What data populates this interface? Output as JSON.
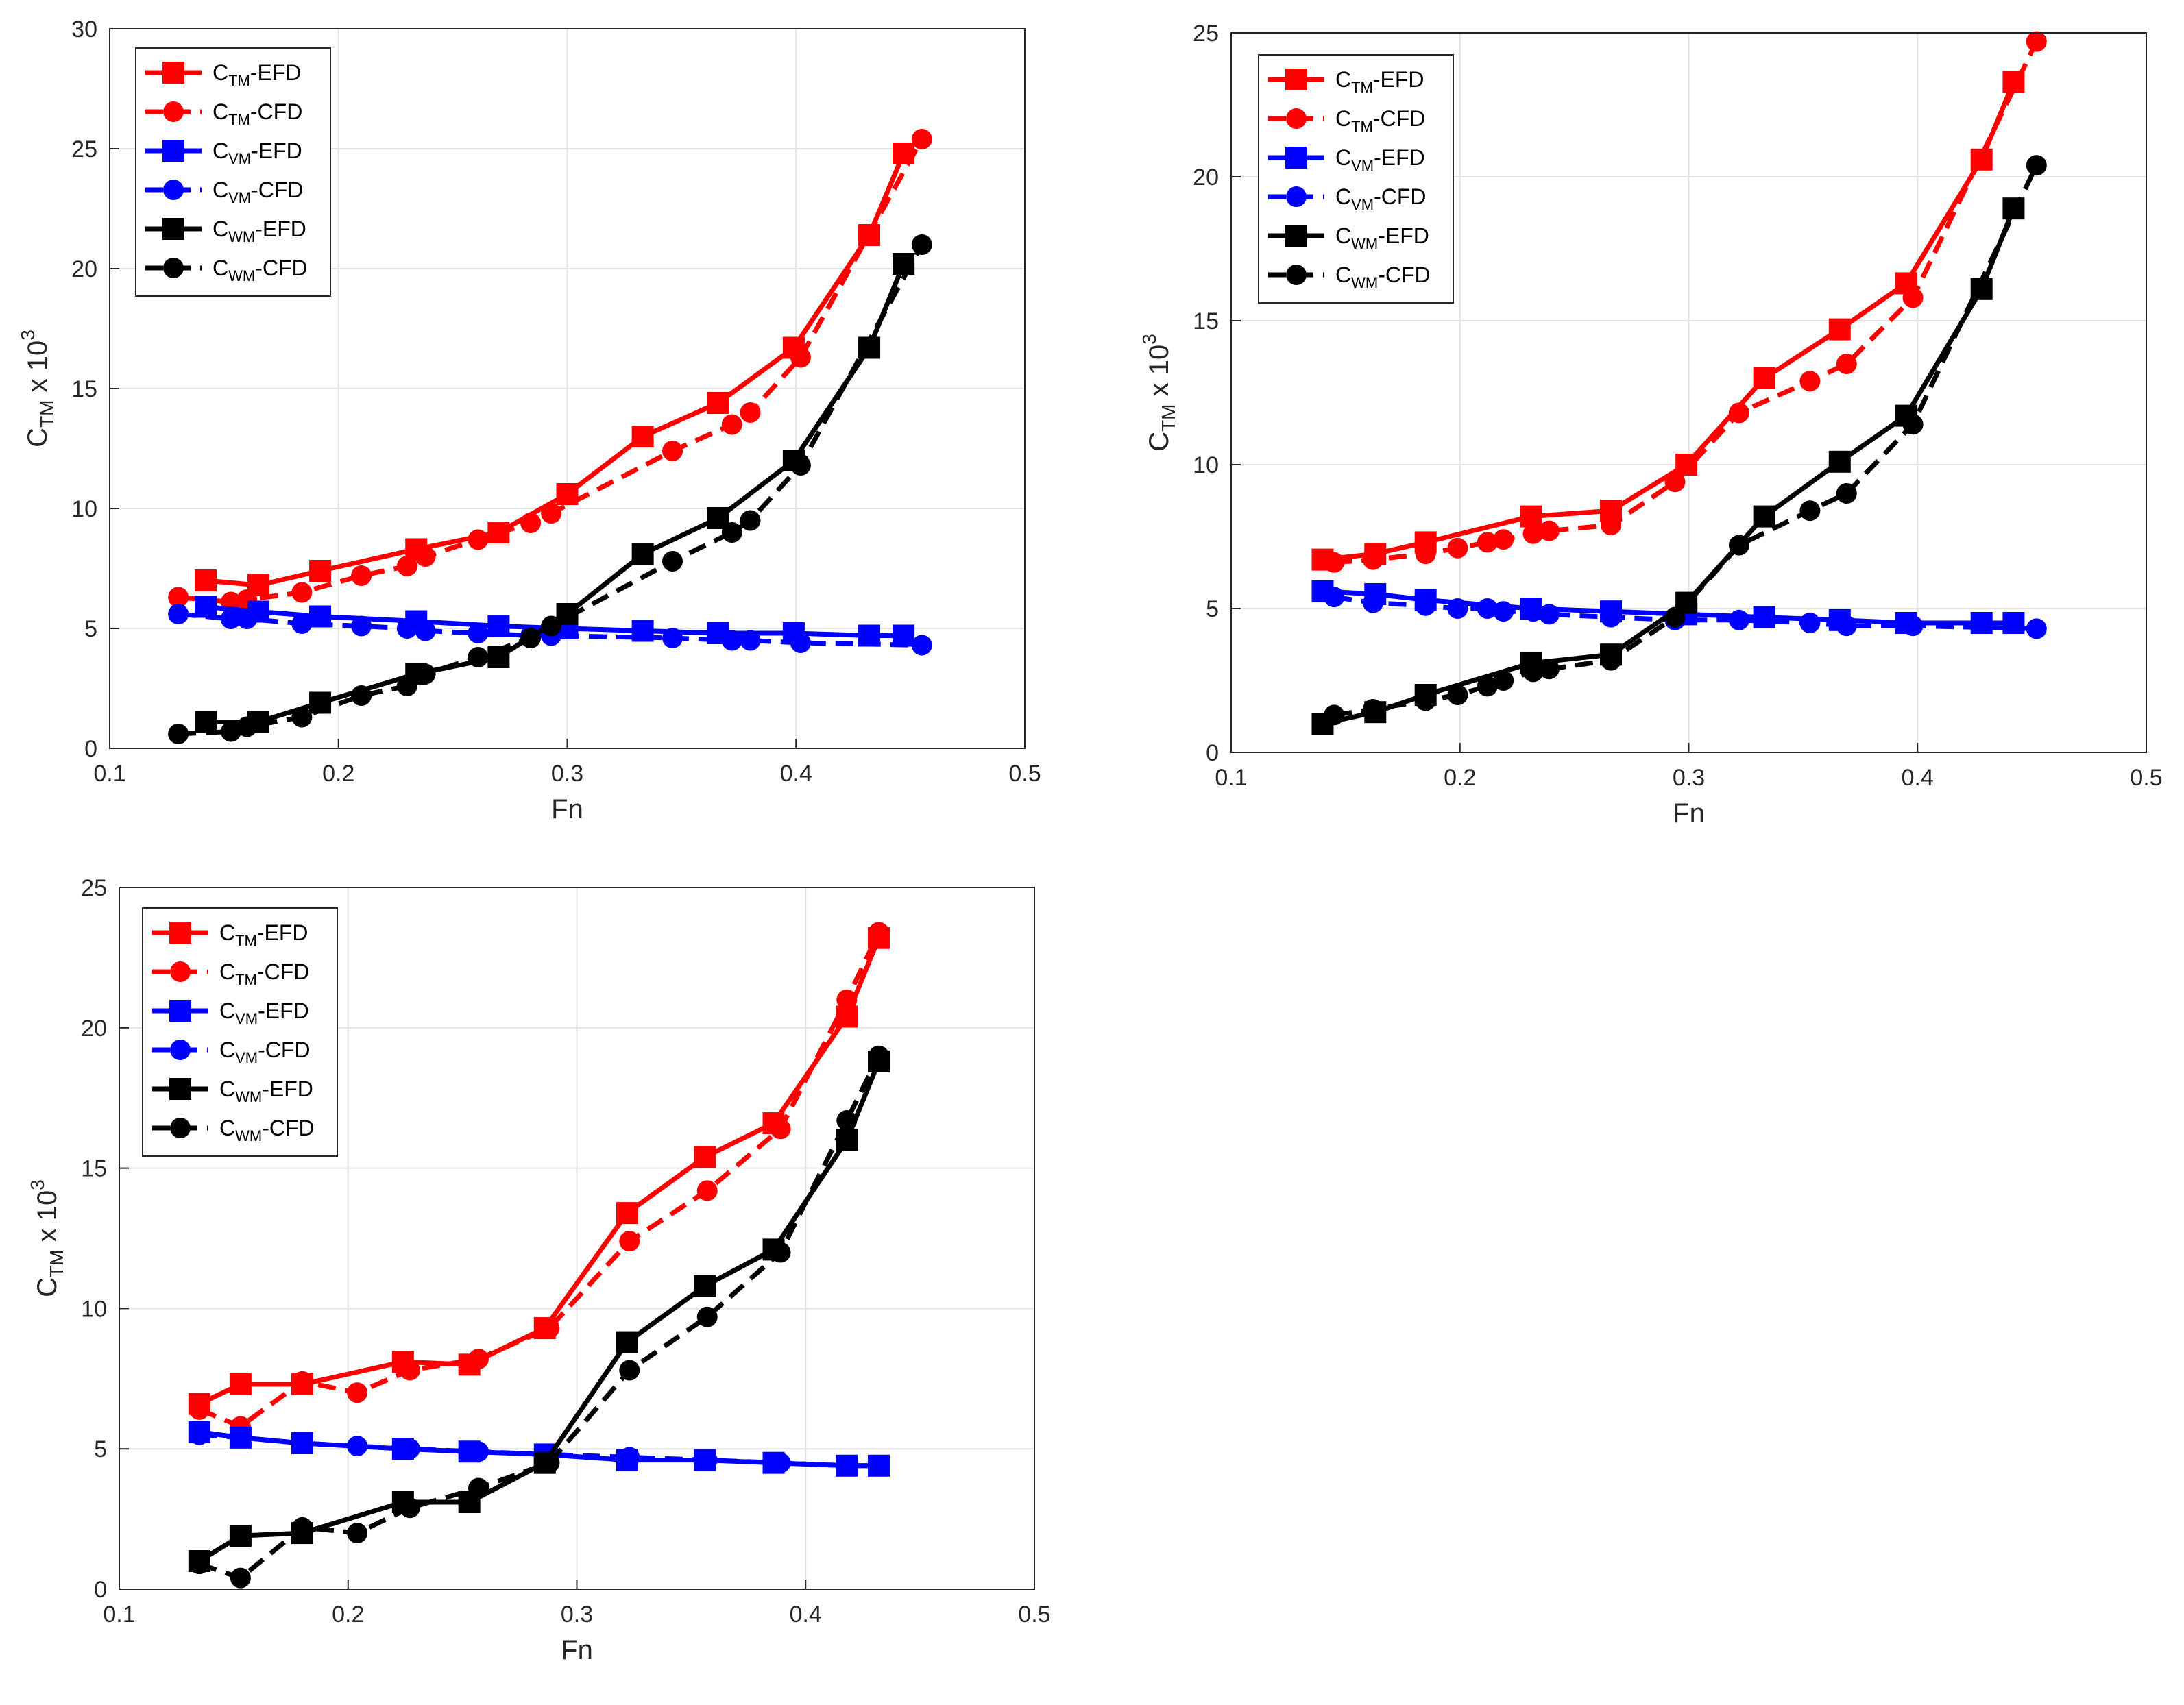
{
  "legend_labels": [
    {
      "main": "C",
      "sub": "TM",
      "suffix": "-EFD"
    },
    {
      "main": "C",
      "sub": "TM",
      "suffix": "-CFD"
    },
    {
      "main": "C",
      "sub": "VM",
      "suffix": "-EFD"
    },
    {
      "main": "C",
      "sub": "VM",
      "suffix": "-CFD"
    },
    {
      "main": "C",
      "sub": "WM",
      "suffix": "-EFD"
    },
    {
      "main": "C",
      "sub": "WM",
      "suffix": "-CFD"
    }
  ],
  "colors": {
    "red": "#ff0000",
    "blue": "#0000ff",
    "black": "#000000",
    "grid": "#e3e3e3",
    "axis": "#262626"
  },
  "chart_data": [
    {
      "type": "line",
      "xlabel": "Fn",
      "ylabel": {
        "main": "C",
        "sub": "TM",
        "rest": " x 10",
        "sup": "3"
      },
      "xlim": [
        0.1,
        0.5
      ],
      "ylim": [
        0,
        30
      ],
      "xticks": [
        "0.1",
        "0.2",
        "0.3",
        "0.4",
        "0.5"
      ],
      "yticks": [
        "0",
        "5",
        "10",
        "15",
        "20",
        "25",
        "30"
      ],
      "grid": true,
      "legend_position": "top-left",
      "series": [
        {
          "name": "CTM-EFD",
          "color": "red",
          "marker": "square",
          "dash": false,
          "x": [
            0.142,
            0.165,
            0.192,
            0.234,
            0.27,
            0.3,
            0.333,
            0.366,
            0.399,
            0.432,
            0.447
          ],
          "y": [
            7.0,
            6.8,
            7.4,
            8.3,
            9.0,
            10.6,
            13.0,
            14.4,
            16.7,
            21.4,
            24.8
          ]
        },
        {
          "name": "CTM-CFD",
          "color": "red",
          "marker": "circle",
          "dash": true,
          "x": [
            0.13,
            0.153,
            0.16,
            0.184,
            0.21,
            0.23,
            0.238,
            0.261,
            0.284,
            0.293,
            0.346,
            0.372,
            0.38,
            0.402,
            0.455
          ],
          "y": [
            6.3,
            6.1,
            6.2,
            6.5,
            7.2,
            7.6,
            8.0,
            8.7,
            9.4,
            9.8,
            12.4,
            13.5,
            14.0,
            16.3,
            25.4
          ]
        },
        {
          "name": "CVM-EFD",
          "color": "blue",
          "marker": "square",
          "dash": false,
          "x": [
            0.142,
            0.165,
            0.192,
            0.234,
            0.27,
            0.3,
            0.333,
            0.366,
            0.399,
            0.432,
            0.447
          ],
          "y": [
            5.9,
            5.7,
            5.5,
            5.3,
            5.1,
            5.0,
            4.9,
            4.8,
            4.8,
            4.7,
            4.7
          ]
        },
        {
          "name": "CVM-CFD",
          "color": "blue",
          "marker": "circle",
          "dash": true,
          "x": [
            0.13,
            0.153,
            0.16,
            0.184,
            0.21,
            0.23,
            0.238,
            0.261,
            0.284,
            0.293,
            0.346,
            0.372,
            0.38,
            0.402,
            0.455
          ],
          "y": [
            5.6,
            5.4,
            5.4,
            5.2,
            5.1,
            5.0,
            4.9,
            4.8,
            4.7,
            4.7,
            4.6,
            4.5,
            4.5,
            4.4,
            4.3
          ]
        },
        {
          "name": "CWM-EFD",
          "color": "black",
          "marker": "square",
          "dash": false,
          "x": [
            0.142,
            0.165,
            0.192,
            0.234,
            0.27,
            0.3,
            0.333,
            0.366,
            0.399,
            0.432,
            0.447
          ],
          "y": [
            1.1,
            1.1,
            1.9,
            3.1,
            3.8,
            5.6,
            8.1,
            9.6,
            12.0,
            16.7,
            20.2
          ]
        },
        {
          "name": "CWM-CFD",
          "color": "black",
          "marker": "circle",
          "dash": true,
          "x": [
            0.13,
            0.153,
            0.16,
            0.184,
            0.21,
            0.23,
            0.238,
            0.261,
            0.284,
            0.293,
            0.346,
            0.372,
            0.38,
            0.402,
            0.455
          ],
          "y": [
            0.6,
            0.7,
            0.9,
            1.3,
            2.2,
            2.6,
            3.1,
            3.8,
            4.6,
            5.1,
            7.8,
            9.0,
            9.5,
            11.8,
            21.0
          ]
        }
      ]
    },
    {
      "type": "line",
      "xlabel": "Fn",
      "ylabel": {
        "main": "C",
        "sub": "TM",
        "rest": " x 10",
        "sup": "3"
      },
      "xlim": [
        0.1,
        0.5
      ],
      "ylim": [
        0,
        25
      ],
      "xticks": [
        "0.1",
        "0.2",
        "0.3",
        "0.4",
        "0.5"
      ],
      "yticks": [
        "0",
        "5",
        "10",
        "15",
        "20",
        "25"
      ],
      "grid": true,
      "legend_position": "top-left",
      "series": [
        {
          "name": "CTM-EFD",
          "color": "red",
          "marker": "square",
          "dash": false,
          "x": [
            0.14,
            0.163,
            0.185,
            0.231,
            0.266,
            0.299,
            0.333,
            0.366,
            0.395,
            0.428,
            0.442
          ],
          "y": [
            6.7,
            6.9,
            7.3,
            8.2,
            8.4,
            10.0,
            13.0,
            14.7,
            16.3,
            20.6,
            23.3
          ]
        },
        {
          "name": "CTM-CFD",
          "color": "red",
          "marker": "circle",
          "dash": true,
          "x": [
            0.145,
            0.162,
            0.185,
            0.199,
            0.212,
            0.219,
            0.232,
            0.239,
            0.266,
            0.294,
            0.322,
            0.353,
            0.369,
            0.398,
            0.452
          ],
          "y": [
            6.6,
            6.7,
            6.9,
            7.1,
            7.3,
            7.4,
            7.6,
            7.7,
            7.9,
            9.4,
            11.8,
            12.9,
            13.5,
            15.8,
            24.7
          ]
        },
        {
          "name": "CVM-EFD",
          "color": "blue",
          "marker": "square",
          "dash": false,
          "x": [
            0.14,
            0.163,
            0.185,
            0.231,
            0.266,
            0.299,
            0.333,
            0.366,
            0.395,
            0.428,
            0.442
          ],
          "y": [
            5.6,
            5.5,
            5.3,
            5.0,
            4.9,
            4.8,
            4.7,
            4.6,
            4.5,
            4.5,
            4.5
          ]
        },
        {
          "name": "CVM-CFD",
          "color": "blue",
          "marker": "circle",
          "dash": true,
          "x": [
            0.145,
            0.162,
            0.185,
            0.199,
            0.212,
            0.219,
            0.232,
            0.239,
            0.266,
            0.294,
            0.322,
            0.353,
            0.369,
            0.398,
            0.452
          ],
          "y": [
            5.4,
            5.2,
            5.1,
            5.0,
            5.0,
            4.9,
            4.9,
            4.8,
            4.7,
            4.6,
            4.6,
            4.5,
            4.4,
            4.4,
            4.3
          ]
        },
        {
          "name": "CWM-EFD",
          "color": "black",
          "marker": "square",
          "dash": false,
          "x": [
            0.14,
            0.163,
            0.185,
            0.231,
            0.266,
            0.299,
            0.333,
            0.366,
            0.395,
            0.428,
            0.442
          ],
          "y": [
            1.0,
            1.4,
            2.0,
            3.1,
            3.4,
            5.2,
            8.2,
            10.1,
            11.7,
            16.1,
            18.9
          ]
        },
        {
          "name": "CWM-CFD",
          "color": "black",
          "marker": "circle",
          "dash": true,
          "x": [
            0.145,
            0.162,
            0.185,
            0.199,
            0.212,
            0.219,
            0.232,
            0.239,
            0.266,
            0.294,
            0.322,
            0.353,
            0.369,
            0.398,
            0.452
          ],
          "y": [
            1.3,
            1.5,
            1.8,
            2.0,
            2.3,
            2.5,
            2.8,
            2.9,
            3.2,
            4.7,
            7.2,
            8.4,
            9.0,
            11.4,
            20.4
          ]
        }
      ]
    },
    {
      "type": "line",
      "xlabel": "Fn",
      "ylabel": {
        "main": "C",
        "sub": "TM",
        "rest": " x 10",
        "sup": "3"
      },
      "xlim": [
        0.1,
        0.5
      ],
      "ylim": [
        0,
        25
      ],
      "xticks": [
        "0.1",
        "0.2",
        "0.3",
        "0.4",
        "0.5"
      ],
      "yticks": [
        "0",
        "5",
        "10",
        "15",
        "20",
        "25"
      ],
      "grid": true,
      "legend_position": "top-left",
      "series": [
        {
          "name": "CTM-EFD",
          "color": "red",
          "marker": "square",
          "dash": false,
          "x": [
            0.135,
            0.153,
            0.18,
            0.224,
            0.253,
            0.286,
            0.322,
            0.356,
            0.386,
            0.418,
            0.432
          ],
          "y": [
            6.6,
            7.3,
            7.3,
            8.1,
            8.0,
            9.3,
            13.4,
            15.4,
            16.6,
            20.4,
            23.2
          ]
        },
        {
          "name": "CTM-CFD",
          "color": "red",
          "marker": "circle",
          "dash": true,
          "x": [
            0.135,
            0.153,
            0.18,
            0.204,
            0.227,
            0.257,
            0.288,
            0.323,
            0.357,
            0.389,
            0.418,
            0.432
          ],
          "y": [
            6.4,
            5.8,
            7.4,
            7.0,
            7.8,
            8.2,
            9.3,
            12.4,
            14.2,
            16.4,
            21.0,
            23.4
          ]
        },
        {
          "name": "CVM-EFD",
          "color": "blue",
          "marker": "square",
          "dash": false,
          "x": [
            0.135,
            0.153,
            0.18,
            0.224,
            0.253,
            0.286,
            0.322,
            0.356,
            0.386,
            0.418,
            0.432
          ],
          "y": [
            5.6,
            5.4,
            5.2,
            5.0,
            4.9,
            4.8,
            4.6,
            4.6,
            4.5,
            4.4,
            4.4
          ]
        },
        {
          "name": "CVM-CFD",
          "color": "blue",
          "marker": "circle",
          "dash": true,
          "x": [
            0.135,
            0.153,
            0.18,
            0.204,
            0.227,
            0.257,
            0.288,
            0.323,
            0.357,
            0.389,
            0.418,
            0.432
          ],
          "y": [
            5.5,
            5.4,
            5.2,
            5.1,
            5.0,
            4.9,
            4.8,
            4.7,
            4.6,
            4.5,
            4.4,
            4.4
          ]
        },
        {
          "name": "CWM-EFD",
          "color": "black",
          "marker": "square",
          "dash": false,
          "x": [
            0.135,
            0.153,
            0.18,
            0.224,
            0.253,
            0.286,
            0.322,
            0.356,
            0.386,
            0.418,
            0.432
          ],
          "y": [
            1.0,
            1.9,
            2.0,
            3.1,
            3.1,
            4.5,
            8.8,
            10.8,
            12.1,
            16.0,
            18.8
          ]
        },
        {
          "name": "CWM-CFD",
          "color": "black",
          "marker": "circle",
          "dash": true,
          "x": [
            0.135,
            0.153,
            0.18,
            0.204,
            0.227,
            0.257,
            0.288,
            0.323,
            0.357,
            0.389,
            0.418,
            0.432
          ],
          "y": [
            0.9,
            0.4,
            2.2,
            2.0,
            2.9,
            3.6,
            4.5,
            7.8,
            9.7,
            12.0,
            16.7,
            19.0
          ]
        }
      ]
    }
  ]
}
